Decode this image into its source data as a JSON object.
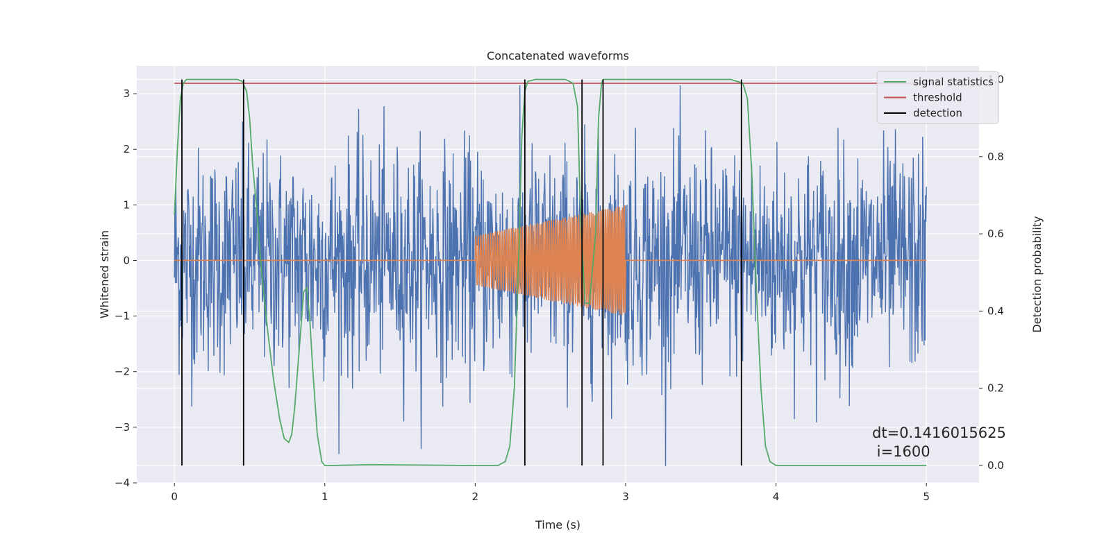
{
  "chart_data": {
    "type": "line",
    "title": "Concatenated waveforms",
    "xlabel": "Time (s)",
    "ylabel": "Whitened strain",
    "y2label": "Detection probability",
    "xlim": [
      -0.25,
      5.35
    ],
    "ylim": [
      -4.0,
      3.5
    ],
    "y2lim": [
      -0.045,
      1.035
    ],
    "x_ticks": [
      0,
      1,
      2,
      3,
      4,
      5
    ],
    "x_tick_labels": [
      "0",
      "1",
      "2",
      "3",
      "4",
      "5"
    ],
    "y_ticks": [
      3,
      2,
      1,
      0,
      -1,
      -2,
      -3,
      -4
    ],
    "y_tick_labels": [
      "3",
      "2",
      "1",
      "0",
      "−1",
      "−2",
      "−3",
      "−4"
    ],
    "y2_ticks": [
      1.0,
      0.8,
      0.6,
      0.4,
      0.2,
      0.0
    ],
    "y2_tick_labels": [
      "1.0",
      "0.8",
      "0.6",
      "0.4",
      "0.2",
      "0.0"
    ],
    "grid": true,
    "legend_position": "top-right",
    "colors": {
      "background": "#eaeaf2",
      "grid": "#ffffff",
      "strain": "#4c72b0",
      "injection": "#dd8452",
      "signal": "#55a868",
      "threshold": "#c44e52",
      "detection": "#000000"
    },
    "legend": [
      {
        "name": "signal statistics",
        "color": "#55a868"
      },
      {
        "name": "threshold",
        "color": "#c44e52"
      },
      {
        "name": "detection",
        "color": "#000000"
      }
    ],
    "noise": {
      "x_start": 0,
      "x_end": 5,
      "amplitude": 1.0
    },
    "injection": {
      "x_start": 2.0,
      "x_end": 3.0,
      "amp_start": 0.45,
      "amp_end": 1.0,
      "offset": 0.0
    },
    "threshold": {
      "x_start": 0,
      "x_end": 5,
      "value": 0.99
    },
    "signal_statistics": {
      "x": [
        0,
        0.02,
        0.04,
        0.06,
        0.08,
        0.1,
        0.42,
        0.45,
        0.48,
        0.5,
        0.52,
        0.55,
        0.58,
        0.62,
        0.66,
        0.7,
        0.73,
        0.76,
        0.78,
        0.8,
        0.83,
        0.86,
        0.88,
        0.9,
        0.92,
        0.95,
        0.98,
        1.0,
        1.05,
        1.3,
        2.0,
        2.15,
        2.2,
        2.23,
        2.26,
        2.29,
        2.31,
        2.33,
        2.35,
        2.4,
        2.6,
        2.65,
        2.68,
        2.7,
        2.73,
        2.76,
        2.8,
        2.82,
        2.84,
        2.85,
        2.87,
        2.9,
        3.0,
        3.7,
        3.78,
        3.81,
        3.84,
        3.87,
        3.9,
        3.93,
        3.96,
        4.0,
        4.5,
        5.0
      ],
      "y": [
        0.65,
        0.82,
        0.95,
        0.99,
        1.0,
        1.0,
        1.0,
        0.995,
        0.97,
        0.9,
        0.78,
        0.65,
        0.5,
        0.35,
        0.22,
        0.12,
        0.07,
        0.06,
        0.08,
        0.15,
        0.3,
        0.45,
        0.46,
        0.38,
        0.25,
        0.08,
        0.01,
        0.0,
        0.0,
        0.002,
        0.0,
        0.0,
        0.01,
        0.05,
        0.2,
        0.55,
        0.85,
        0.97,
        0.995,
        1.0,
        1.0,
        0.99,
        0.93,
        0.65,
        0.42,
        0.42,
        0.6,
        0.9,
        0.99,
        1.0,
        1.0,
        1.0,
        1.0,
        1.0,
        0.99,
        0.95,
        0.75,
        0.45,
        0.2,
        0.05,
        0.01,
        0.0,
        0.0,
        0.0
      ]
    },
    "detections": [
      0.05,
      0.46,
      2.33,
      2.71,
      2.85,
      3.77
    ],
    "annotation": {
      "lines": [
        "dt=0.1416015625",
        " i=1600"
      ]
    }
  }
}
